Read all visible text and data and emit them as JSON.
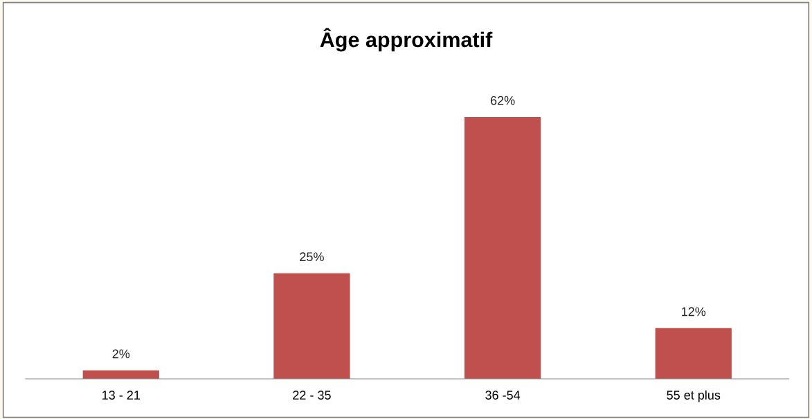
{
  "chart_data": {
    "type": "bar",
    "title": "Âge approximatif",
    "categories": [
      "13 - 21",
      "22 - 35",
      "36 -54",
      "55 et plus"
    ],
    "values": [
      2,
      25,
      62,
      12
    ],
    "color": "#c0504d",
    "value_labels": [
      "2%",
      "25%",
      "62%",
      "12%"
    ],
    "tick_labels": "x",
    "grid": false
  }
}
